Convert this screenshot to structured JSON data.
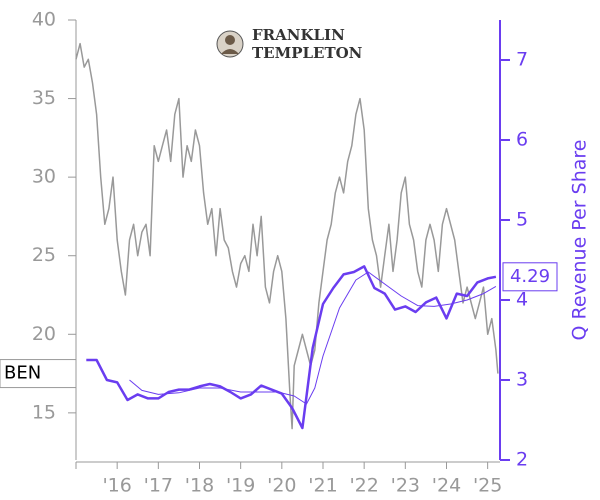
{
  "chart_data": {
    "type": "line",
    "logo": {
      "line1": "FRANKLIN",
      "line2": "TEMPLETON"
    },
    "y2_label": "Q Revenue Per Share",
    "xlim": [
      2015,
      2025.3
    ],
    "ylim": [
      12,
      40
    ],
    "y2lim": [
      2,
      7.5
    ],
    "xticks": [
      {
        "value": 2016,
        "label": "'16"
      },
      {
        "value": 2017,
        "label": "'17"
      },
      {
        "value": 2018,
        "label": "'18"
      },
      {
        "value": 2019,
        "label": "'19"
      },
      {
        "value": 2020,
        "label": "'20"
      },
      {
        "value": 2021,
        "label": "'21"
      },
      {
        "value": 2022,
        "label": "'22"
      },
      {
        "value": 2023,
        "label": "'23"
      },
      {
        "value": 2024,
        "label": "'24"
      },
      {
        "value": 2025,
        "label": "'25"
      }
    ],
    "yticks": [
      15,
      20,
      25,
      30,
      35,
      40
    ],
    "y2ticks": [
      2,
      3,
      4,
      5,
      6,
      7
    ],
    "series": [
      {
        "name": "BEN",
        "color": "#999999",
        "width": 1.5,
        "x": [
          2015.0,
          2015.1,
          2015.2,
          2015.3,
          2015.4,
          2015.5,
          2015.6,
          2015.7,
          2015.8,
          2015.9,
          2016.0,
          2016.1,
          2016.2,
          2016.3,
          2016.4,
          2016.5,
          2016.6,
          2016.7,
          2016.8,
          2016.9,
          2017.0,
          2017.1,
          2017.2,
          2017.3,
          2017.4,
          2017.5,
          2017.6,
          2017.7,
          2017.8,
          2017.9,
          2018.0,
          2018.1,
          2018.2,
          2018.3,
          2018.4,
          2018.5,
          2018.6,
          2018.7,
          2018.8,
          2018.9,
          2019.0,
          2019.1,
          2019.2,
          2019.3,
          2019.4,
          2019.5,
          2019.6,
          2019.7,
          2019.8,
          2019.9,
          2020.0,
          2020.1,
          2020.2,
          2020.25,
          2020.3,
          2020.4,
          2020.5,
          2020.6,
          2020.7,
          2020.8,
          2020.9,
          2021.0,
          2021.1,
          2021.2,
          2021.3,
          2021.4,
          2021.5,
          2021.6,
          2021.7,
          2021.8,
          2021.9,
          2022.0,
          2022.1,
          2022.2,
          2022.3,
          2022.4,
          2022.5,
          2022.6,
          2022.7,
          2022.8,
          2022.9,
          2023.0,
          2023.1,
          2023.2,
          2023.3,
          2023.4,
          2023.5,
          2023.6,
          2023.7,
          2023.8,
          2023.9,
          2024.0,
          2024.1,
          2024.2,
          2024.3,
          2024.4,
          2024.5,
          2024.6,
          2024.7,
          2024.8,
          2024.9,
          2025.0,
          2025.1,
          2025.2,
          2025.25
        ],
        "values": [
          37.5,
          38.5,
          37,
          37.5,
          36,
          34,
          30,
          27,
          28,
          30,
          26,
          24,
          22.5,
          26,
          27,
          25,
          26.5,
          27,
          25,
          32,
          31,
          32,
          33,
          31,
          34,
          35,
          30,
          32,
          31,
          33,
          32,
          29,
          27,
          28,
          25,
          28,
          26,
          25.5,
          24,
          23,
          24.5,
          25,
          24,
          27,
          25,
          27.5,
          23,
          22,
          24,
          25,
          24,
          21,
          16,
          14,
          18,
          19,
          20,
          19,
          18,
          19,
          22,
          24,
          26,
          27,
          29,
          30,
          29,
          31,
          32,
          34,
          35,
          33,
          28,
          26,
          25,
          23,
          25,
          27,
          24,
          26,
          29,
          30,
          27,
          26,
          24,
          23,
          26,
          27,
          26,
          24,
          27,
          28,
          27,
          26,
          24,
          22,
          23,
          22,
          21,
          22,
          23,
          20,
          21,
          19,
          17.5
        ]
      },
      {
        "color": "#6a3df0",
        "axis": "y2",
        "width": 2.5,
        "x": [
          2015.25,
          2015.5,
          2015.75,
          2016.0,
          2016.25,
          2016.5,
          2016.75,
          2017.0,
          2017.25,
          2017.5,
          2017.75,
          2018.0,
          2018.25,
          2018.5,
          2018.75,
          2019.0,
          2019.25,
          2019.5,
          2019.75,
          2020.0,
          2020.25,
          2020.5,
          2020.75,
          2021.0,
          2021.25,
          2021.5,
          2021.75,
          2022.0,
          2022.25,
          2022.5,
          2022.75,
          2023.0,
          2023.25,
          2023.5,
          2023.75,
          2024.0,
          2024.25,
          2024.5,
          2024.75,
          2025.0,
          2025.2
        ],
        "values": [
          3.25,
          3.25,
          3.0,
          2.97,
          2.75,
          2.82,
          2.77,
          2.77,
          2.85,
          2.88,
          2.88,
          2.92,
          2.95,
          2.92,
          2.85,
          2.77,
          2.82,
          2.93,
          2.88,
          2.83,
          2.65,
          2.4,
          3.4,
          3.95,
          4.15,
          4.32,
          4.35,
          4.42,
          4.15,
          4.08,
          3.88,
          3.92,
          3.85,
          3.97,
          4.03,
          3.77,
          4.08,
          4.05,
          4.22,
          4.27,
          4.29
        ]
      },
      {
        "color": "#6a3df0",
        "axis": "y2",
        "width": 1,
        "x": [
          2016.3,
          2016.6,
          2017.0,
          2017.5,
          2018.0,
          2018.5,
          2019.0,
          2019.5,
          2019.9,
          2020.3,
          2020.6,
          2020.8,
          2021.0,
          2021.4,
          2021.8,
          2022.1,
          2022.5,
          2022.9,
          2023.3,
          2023.7,
          2024.1,
          2024.5,
          2024.9,
          2025.2
        ],
        "values": [
          3.0,
          2.87,
          2.82,
          2.84,
          2.9,
          2.9,
          2.85,
          2.85,
          2.85,
          2.8,
          2.7,
          2.9,
          3.3,
          3.9,
          4.25,
          4.35,
          4.2,
          4.05,
          3.93,
          3.92,
          3.95,
          4.0,
          4.08,
          4.17
        ]
      }
    ]
  }
}
